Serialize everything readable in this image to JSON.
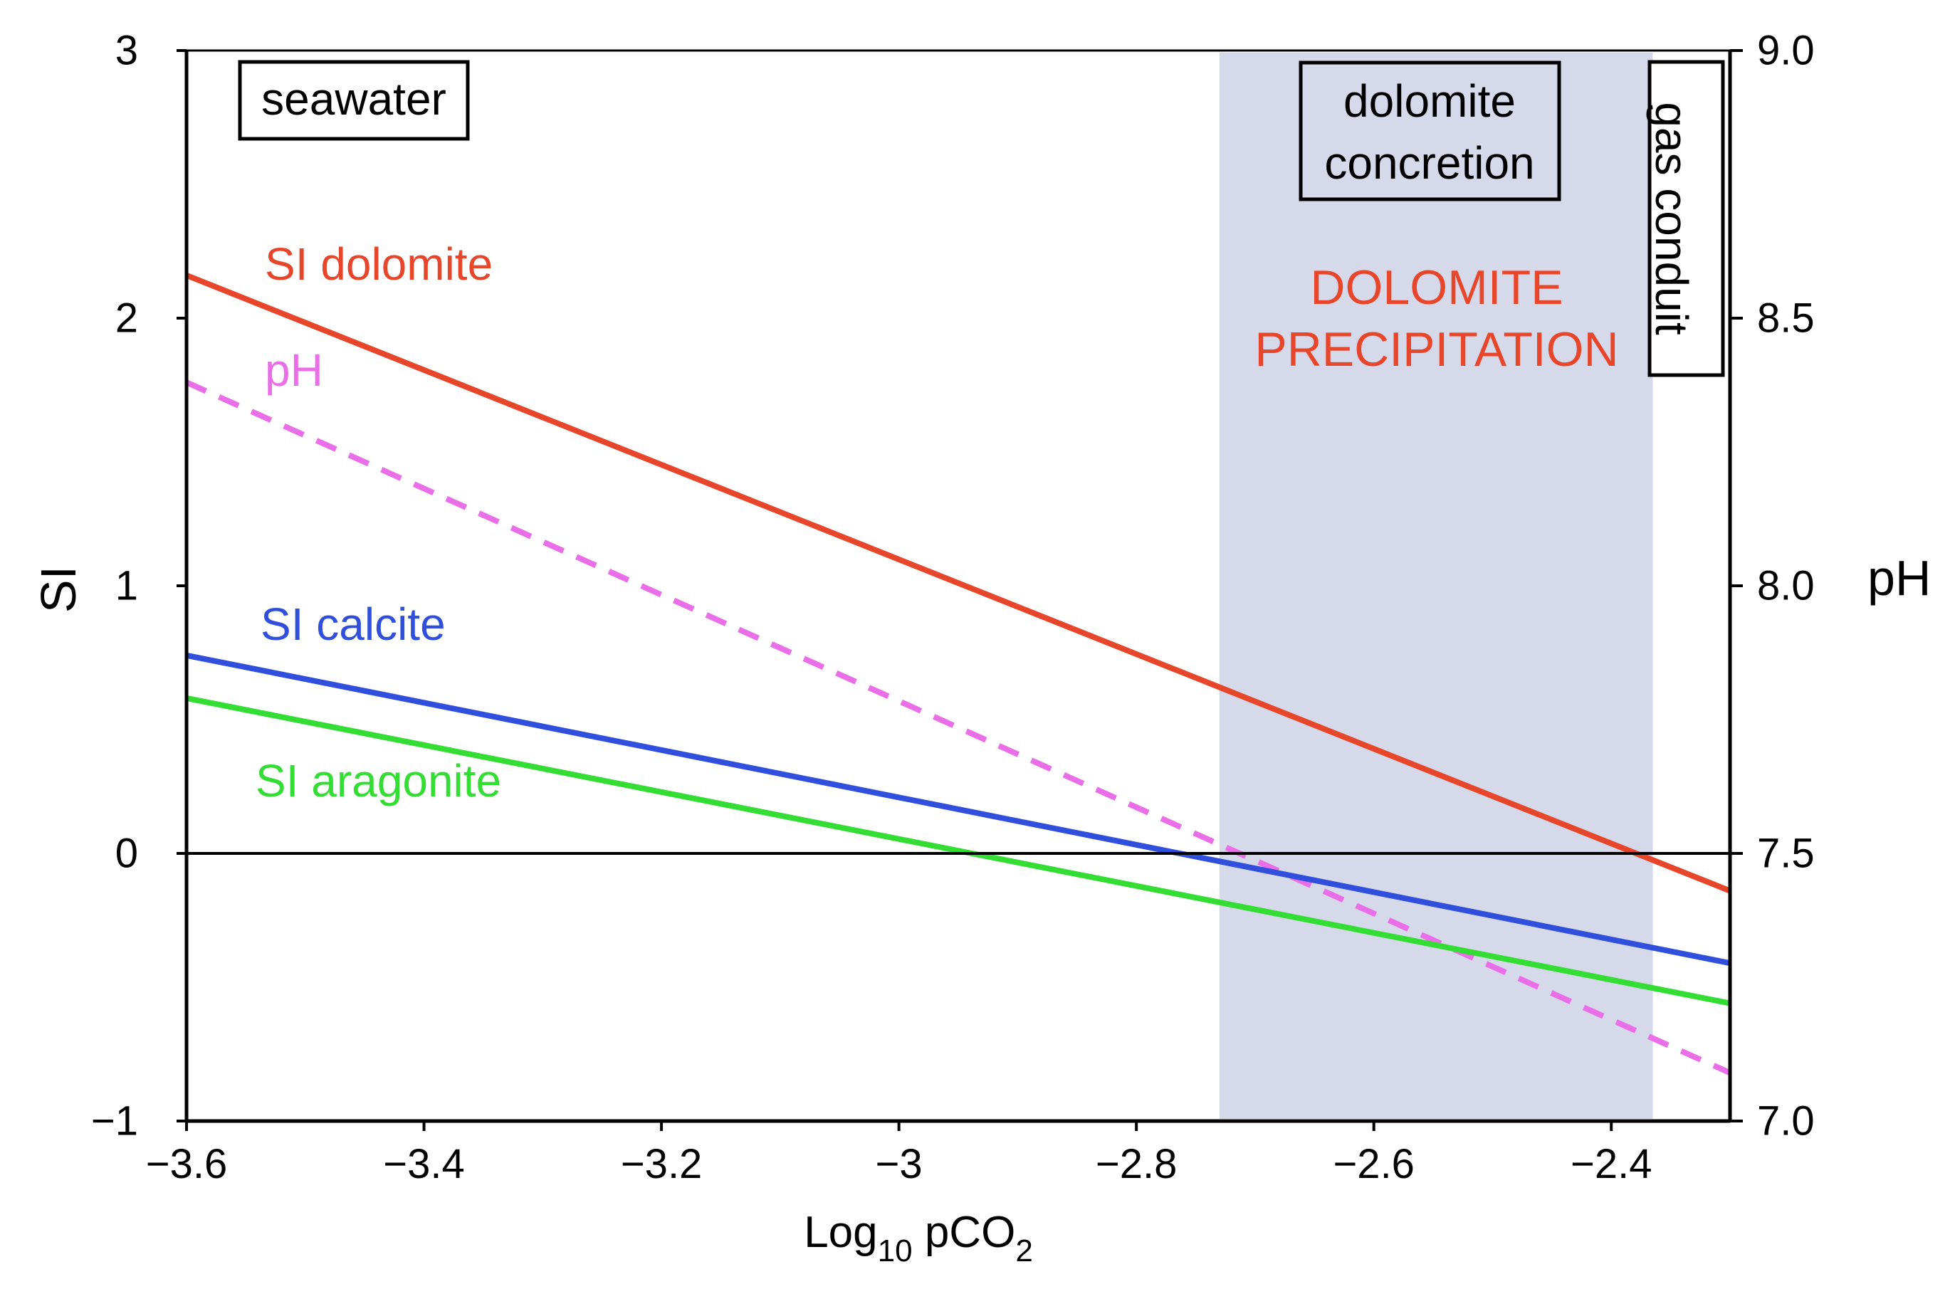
{
  "chart_data": {
    "type": "line",
    "xlabel": "Log",
    "xlabel_sub": "10",
    "xlabel_tail": " pCO",
    "xlabel_sub2": "2",
    "ylabel": "SI",
    "y2label": "pH",
    "xlim": [
      -3.6,
      -2.3
    ],
    "ylim": [
      -1,
      3
    ],
    "y2lim": [
      7.0,
      9.0
    ],
    "xticks": [
      {
        "value": -3.6,
        "label": "−3.6"
      },
      {
        "value": -3.4,
        "label": "−3.4"
      },
      {
        "value": -3.2,
        "label": "−3.2"
      },
      {
        "value": -3.0,
        "label": "−3"
      },
      {
        "value": -2.8,
        "label": "−2.8"
      },
      {
        "value": -2.6,
        "label": "−2.6"
      },
      {
        "value": -2.4,
        "label": "−2.4"
      }
    ],
    "yticks": [
      {
        "value": -1,
        "label": "−1"
      },
      {
        "value": 0,
        "label": "0"
      },
      {
        "value": 1,
        "label": "1"
      },
      {
        "value": 2,
        "label": "2"
      },
      {
        "value": 3,
        "label": "3"
      }
    ],
    "y2ticks": [
      {
        "value": 7.0,
        "label": "7.0"
      },
      {
        "value": 7.5,
        "label": "7.5"
      },
      {
        "value": 8.0,
        "label": "8.0"
      },
      {
        "value": 8.5,
        "label": "8.5"
      },
      {
        "value": 9.0,
        "label": "9.0"
      }
    ],
    "zero_line": 0,
    "shaded_region": {
      "x_from": -2.73,
      "x_to": -2.365,
      "color": "#d6d9ea"
    },
    "series": [
      {
        "name": "SI dolomite",
        "axis": "left",
        "color": "#e8462a",
        "dashed": false,
        "x": [
          -3.6,
          -2.3
        ],
        "y": [
          2.16,
          -0.14
        ]
      },
      {
        "name": "pH",
        "axis": "right",
        "color": "#ea6ee8",
        "dashed": true,
        "x": [
          -3.6,
          -2.3
        ],
        "y": [
          8.38,
          7.09
        ]
      },
      {
        "name": "SI calcite",
        "axis": "left",
        "color": "#2f4fdc",
        "dashed": false,
        "x": [
          -3.6,
          -2.3
        ],
        "y": [
          0.74,
          -0.41
        ]
      },
      {
        "name": "SI aragonite",
        "axis": "left",
        "color": "#33dd33",
        "dashed": false,
        "x": [
          -3.6,
          -2.3
        ],
        "y": [
          0.58,
          -0.56
        ]
      }
    ],
    "annotations": {
      "seawater": "seawater",
      "dolomite_concretion_1": "dolomite",
      "dolomite_concretion_2": "concretion",
      "gas_conduit": "gas conduit",
      "precipitation_1": "DOLOMITE",
      "precipitation_2": "PRECIPITATION"
    },
    "colors": {
      "axis": "#000000",
      "precipitation_text": "#e8462a"
    }
  }
}
